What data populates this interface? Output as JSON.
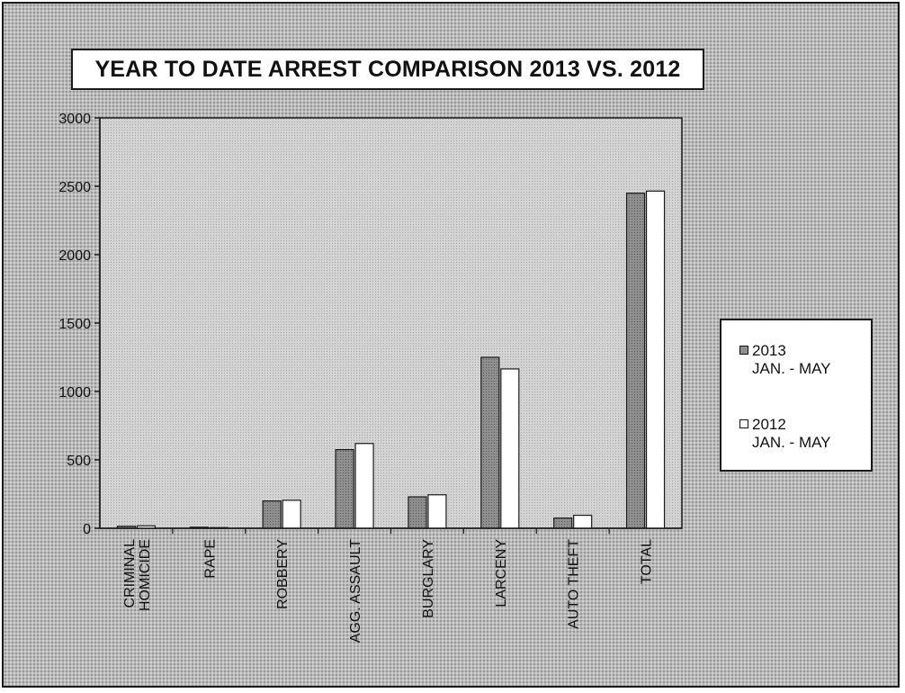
{
  "chart_data": {
    "type": "bar",
    "title": "YEAR TO DATE ARREST COMPARISON 2013 VS. 2012",
    "categories": [
      [
        "CRIMINAL",
        "HOMICIDE"
      ],
      [
        "RAPE"
      ],
      [
        "ROBBERY"
      ],
      [
        "AGG. ASSAULT"
      ],
      [
        "BURGLARY"
      ],
      [
        "LARCENY"
      ],
      [
        "AUTO THEFT"
      ],
      [
        "TOTAL"
      ]
    ],
    "series": [
      {
        "name": "2013",
        "name_line2": "JAN. - MAY",
        "values": [
          15,
          8,
          200,
          575,
          230,
          1250,
          75,
          2450
        ]
      },
      {
        "name": "2012",
        "name_line2": "JAN. - MAY",
        "values": [
          18,
          5,
          205,
          620,
          245,
          1165,
          95,
          2465
        ]
      }
    ],
    "ylim": [
      0,
      3000
    ],
    "yticks": [
      0,
      500,
      1000,
      1500,
      2000,
      2500,
      3000
    ],
    "legend_position": "right",
    "grid": false,
    "colors": {
      "series_2013": "#8f8f8f",
      "series_2012": "#ffffff",
      "plot_bg": "#d3d3d3"
    }
  }
}
